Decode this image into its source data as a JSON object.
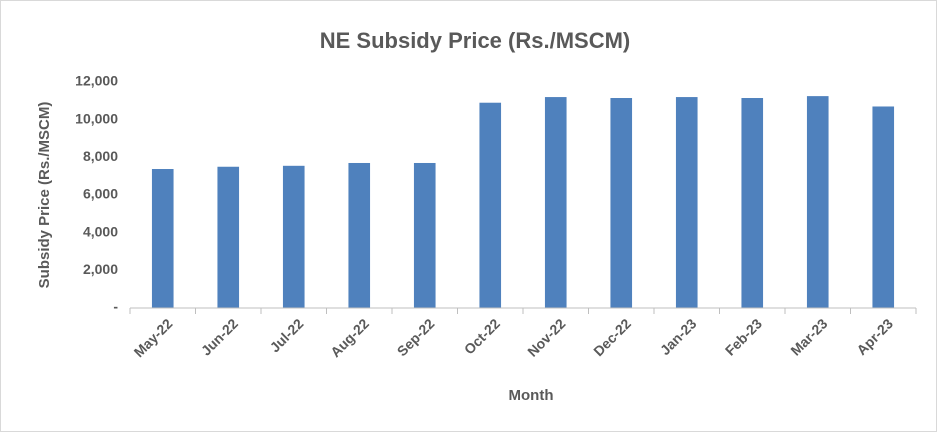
{
  "chart_data": {
    "type": "bar",
    "title": "NE Subsidy Price (Rs./MSCM)",
    "x_label": "Month",
    "y_label": "Subsidy Price (Rs./MSCM)",
    "categories": [
      "May-22",
      "Jun-22",
      "Jul-22",
      "Aug-22",
      "Sep-22",
      "Oct-22",
      "Nov-22",
      "Dec-22",
      "Jan-23",
      "Feb-23",
      "Mar-23",
      "Apr-23"
    ],
    "values": [
      7380,
      7500,
      7550,
      7700,
      7700,
      10900,
      11200,
      11150,
      11200,
      11150,
      11250,
      10700
    ],
    "color": "#4f81bd",
    "ylim": [
      0,
      12000
    ],
    "yticks": [
      {
        "value": 0,
        "label": "-"
      },
      {
        "value": 2000,
        "label": "2,000"
      },
      {
        "value": 4000,
        "label": "4,000"
      },
      {
        "value": 6000,
        "label": "6,000"
      },
      {
        "value": 8000,
        "label": "8,000"
      },
      {
        "value": 10000,
        "label": "10,000"
      },
      {
        "value": 12000,
        "label": "12,000"
      }
    ],
    "grid": false
  }
}
